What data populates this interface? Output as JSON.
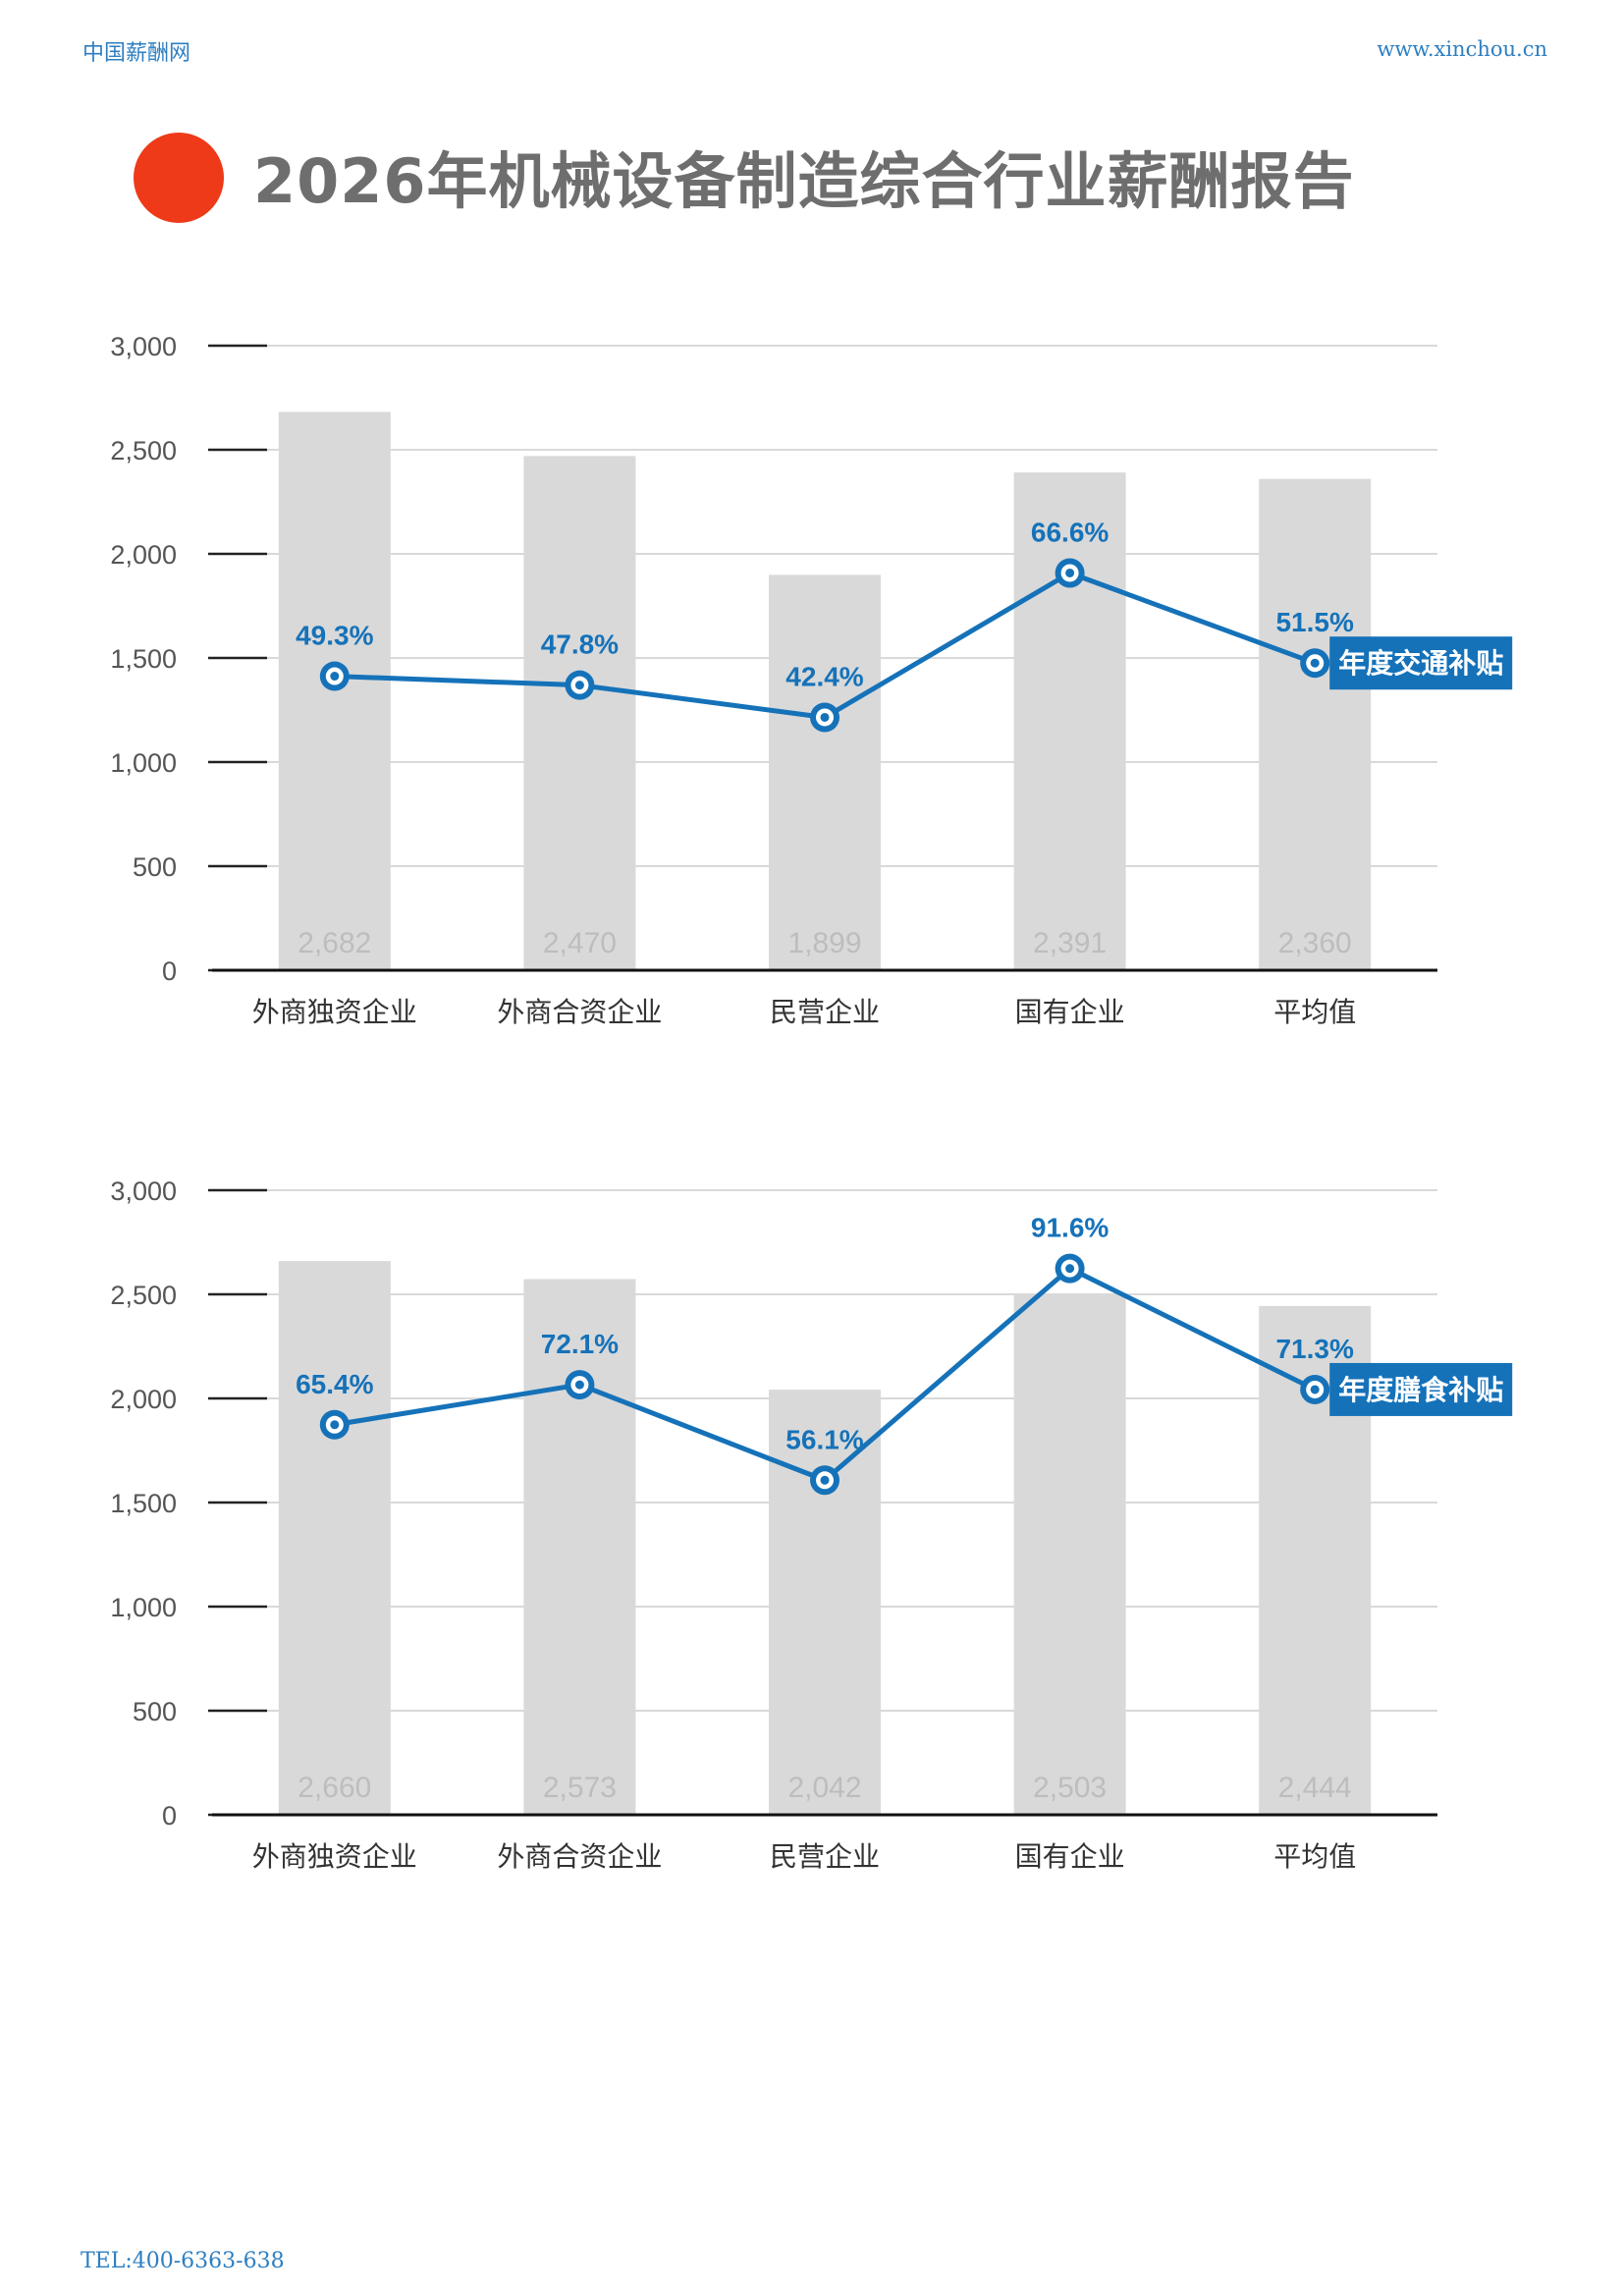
{
  "header": {
    "site_name": "中国薪酬网",
    "site_url": "www.xinchou.cn"
  },
  "title": "2026年机械设备制造综合行业薪酬报告",
  "footer": {
    "tel": "TEL:400-6363-638"
  },
  "colors": {
    "bar": "#d9d9d9",
    "bar_label": "#bdbdbd",
    "line": "#1572b9",
    "grid": "#d9d9d9",
    "axis_text": "#555555",
    "title_dot": "#ee3a18",
    "header_text": "#2e7fc1"
  },
  "chart_data": [
    {
      "type": "bar",
      "categories": [
        "外商独资企业",
        "外商合资企业",
        "民营企业",
        "国有企业",
        "平均值"
      ],
      "ylim": [
        0,
        3000
      ],
      "yticks": [
        "0",
        "500",
        "1,000",
        "1,500",
        "2,000",
        "2,500",
        "3,000"
      ],
      "grid": true,
      "series": [
        {
          "kind": "bar",
          "values": [
            2682,
            2470,
            1899,
            2391,
            2360
          ],
          "data_labels": [
            "2,682",
            "2,470",
            "1,899",
            "2,391",
            "2,360"
          ]
        },
        {
          "kind": "line",
          "name": "年度交通补贴",
          "values": [
            49.3,
            47.8,
            42.4,
            66.6,
            51.5
          ],
          "data_labels": [
            "49.3%",
            "47.8%",
            "42.4%",
            "66.6%",
            "51.5%"
          ]
        }
      ],
      "legend": "right-end-of-line"
    },
    {
      "type": "bar",
      "categories": [
        "外商独资企业",
        "外商合资企业",
        "民营企业",
        "国有企业",
        "平均值"
      ],
      "ylim": [
        0,
        3000
      ],
      "yticks": [
        "0",
        "500",
        "1,000",
        "1,500",
        "2,000",
        "2,500",
        "3,000"
      ],
      "grid": true,
      "series": [
        {
          "kind": "bar",
          "values": [
            2660,
            2573,
            2042,
            2503,
            2444
          ],
          "data_labels": [
            "2,660",
            "2,573",
            "2,042",
            "2,503",
            "2,444"
          ]
        },
        {
          "kind": "line",
          "name": "年度膳食补贴",
          "values": [
            65.4,
            72.1,
            56.1,
            91.6,
            71.3
          ],
          "data_labels": [
            "65.4%",
            "72.1%",
            "56.1%",
            "91.6%",
            "71.3%"
          ]
        }
      ],
      "legend": "right-end-of-line"
    }
  ]
}
